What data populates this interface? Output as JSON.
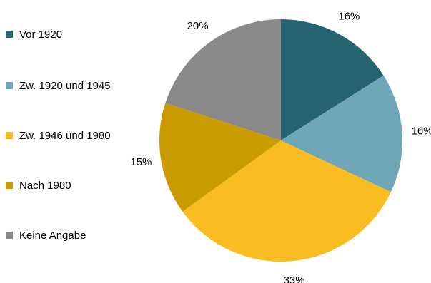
{
  "chart_data": {
    "type": "pie",
    "title": "",
    "legend_position": "left",
    "start_angle": "top",
    "direction": "clockwise",
    "slices": [
      {
        "label": "Vor 1920",
        "value": 16,
        "value_label": "16%",
        "color": "#266470"
      },
      {
        "label": "Zw. 1920 und 1945",
        "value": 16,
        "value_label": "16%",
        "color": "#6fa6b8"
      },
      {
        "label": "Zw. 1946 und 1980",
        "value": 33,
        "value_label": "33%",
        "color": "#f9bd21"
      },
      {
        "label": "Nach 1980",
        "value": 15,
        "value_label": "15%",
        "color": "#c99b00"
      },
      {
        "label": "Keine Angabe",
        "value": 20,
        "value_label": "20%",
        "color": "#898989"
      }
    ]
  }
}
